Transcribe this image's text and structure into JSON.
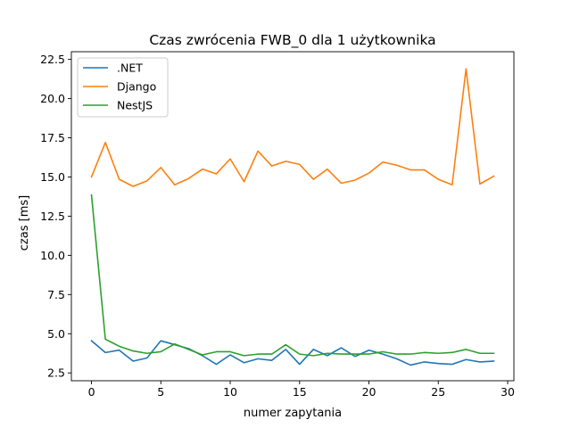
{
  "chart_data": {
    "type": "line",
    "title": "Czas zwrócenia FWB_0 dla 1 użytkownika",
    "xlabel": "numer zapytania",
    "ylabel": "czas [ms]",
    "xlim": [
      -1.45,
      30.45
    ],
    "ylim": [
      2.0,
      22.99
    ],
    "xticks": [
      0,
      5,
      10,
      15,
      20,
      25,
      30
    ],
    "yticks": [
      2.5,
      5.0,
      7.5,
      10.0,
      12.5,
      15.0,
      17.5,
      20.0,
      22.5
    ],
    "ytick_labels": [
      "2.5",
      "5.0",
      "7.5",
      "10.0",
      "12.5",
      "15.0",
      "17.5",
      "20.0",
      "22.5"
    ],
    "grid": false,
    "legend_position": "top-left",
    "x": [
      0,
      1,
      2,
      3,
      4,
      5,
      6,
      7,
      8,
      9,
      10,
      11,
      12,
      13,
      14,
      15,
      16,
      17,
      18,
      19,
      20,
      21,
      22,
      23,
      24,
      25,
      26,
      27,
      28,
      29
    ],
    "series": [
      {
        "name": ".NET",
        "color": "#1f77b4",
        "values": [
          4.55,
          3.8,
          3.95,
          3.25,
          3.45,
          4.55,
          4.3,
          4.05,
          3.6,
          3.05,
          3.65,
          3.15,
          3.4,
          3.3,
          4.0,
          3.05,
          4.0,
          3.6,
          4.1,
          3.55,
          3.95,
          3.7,
          3.4,
          3.0,
          3.2,
          3.1,
          3.05,
          3.35,
          3.2,
          3.25
        ]
      },
      {
        "name": "Django",
        "color": "#ff7f0e",
        "values": [
          15.0,
          17.2,
          14.85,
          14.4,
          14.75,
          15.6,
          14.5,
          14.9,
          15.5,
          15.2,
          16.15,
          14.7,
          16.65,
          15.7,
          16.0,
          15.8,
          14.85,
          15.5,
          14.6,
          14.8,
          15.25,
          15.95,
          15.75,
          15.45,
          15.45,
          14.85,
          14.5,
          21.9,
          14.55,
          15.05
        ]
      },
      {
        "name": "NestJS",
        "color": "#2ca02c",
        "values": [
          13.85,
          4.65,
          4.2,
          3.9,
          3.75,
          3.85,
          4.35,
          4.0,
          3.65,
          3.85,
          3.85,
          3.6,
          3.7,
          3.7,
          4.3,
          3.7,
          3.6,
          3.75,
          3.7,
          3.7,
          3.7,
          3.85,
          3.7,
          3.7,
          3.8,
          3.75,
          3.8,
          4.0,
          3.75,
          3.75
        ]
      }
    ]
  }
}
